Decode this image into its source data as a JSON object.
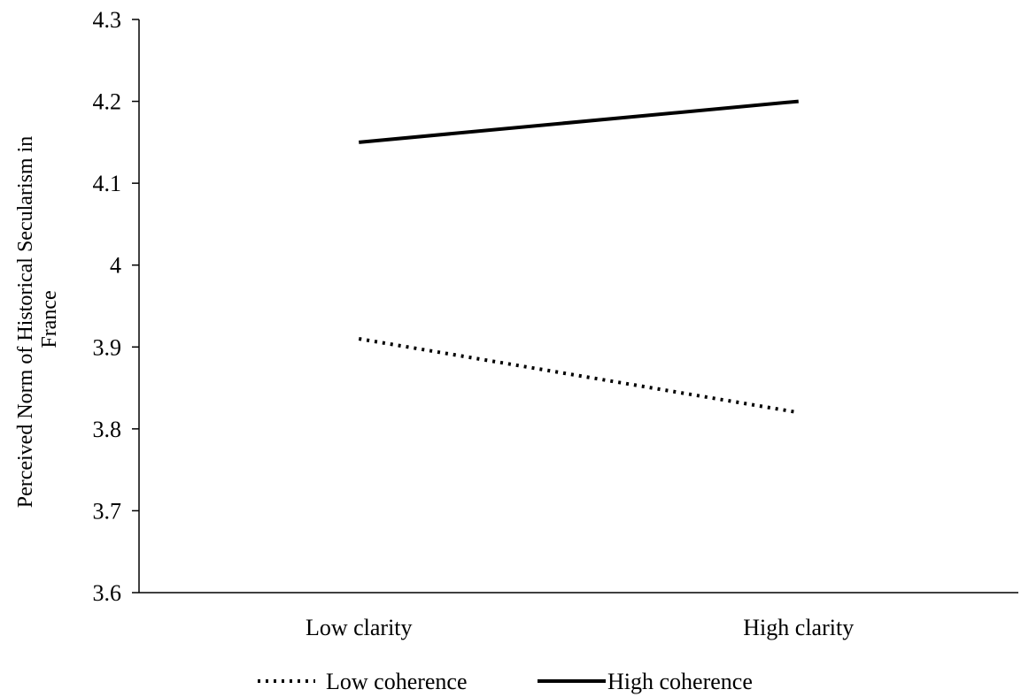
{
  "chart_data": {
    "type": "line",
    "categories": [
      "Low clarity",
      "High clarity"
    ],
    "series": [
      {
        "name": "Low coherence",
        "values": [
          3.91,
          3.82
        ],
        "style": "dotted",
        "color": "#000000"
      },
      {
        "name": "High coherence",
        "values": [
          4.15,
          4.2
        ],
        "style": "solid",
        "color": "#000000"
      }
    ],
    "ylabel_lines": [
      "Perceived  Norm of Historical  Secularism  in",
      "France"
    ],
    "ylim": [
      3.6,
      4.3
    ],
    "yticks": [
      "3.6",
      "3.7",
      "3.8",
      "3.9",
      "4",
      "4.1",
      "4.2",
      "4.3"
    ],
    "grid": false,
    "legend_position": "bottom"
  }
}
